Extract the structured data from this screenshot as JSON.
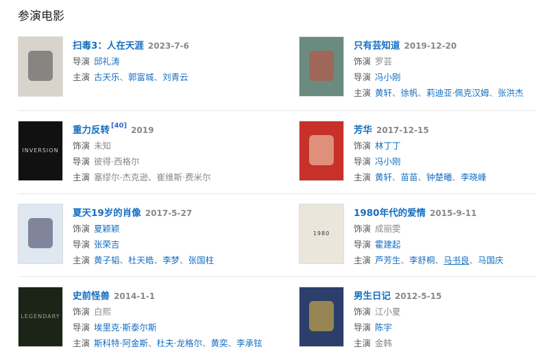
{
  "section_title": "参演电影",
  "labels": {
    "role": "饰演",
    "director": "导演",
    "cast": "主演"
  },
  "films": [
    {
      "title": "扫毒3：人在天涯",
      "ref": "",
      "date": "2023-7-6",
      "poster_bg": "#d8d4cc",
      "poster_fg": "#444",
      "role": null,
      "director": [
        {
          "n": "邱礼涛",
          "l": true
        }
      ],
      "cast": [
        {
          "n": "古天乐",
          "l": true
        },
        {
          "n": "郭富城",
          "l": true
        },
        {
          "n": "刘青云",
          "l": true
        }
      ]
    },
    {
      "title": "只有芸知道",
      "ref": "",
      "date": "2019-12-20",
      "poster_bg": "#6b8a80",
      "poster_fg": "#c94a3a",
      "role": [
        {
          "n": "罗芸",
          "l": false
        }
      ],
      "director": [
        {
          "n": "冯小刚",
          "l": true
        }
      ],
      "cast": [
        {
          "n": "黄轩",
          "l": true
        },
        {
          "n": "徐帆",
          "l": true
        },
        {
          "n": "莉迪亚·佩克汉姆",
          "l": true
        },
        {
          "n": "张洪杰",
          "l": true
        }
      ]
    },
    {
      "title": "重力反转",
      "ref": "[40]",
      "date": "2019",
      "poster_bg": "#111",
      "poster_fg": "#ccc",
      "poster_text": "INVERSION",
      "role": [
        {
          "n": "未知",
          "l": false
        }
      ],
      "director": [
        {
          "n": "彼得·西格尔",
          "l": false
        }
      ],
      "cast": [
        {
          "n": "塞缪尔·杰克逊",
          "l": false
        },
        {
          "n": "崔维斯·费米尔",
          "l": false
        }
      ]
    },
    {
      "title": "芳华",
      "ref": "",
      "date": "2017-12-15",
      "poster_bg": "#c8302a",
      "poster_fg": "#f3e0c0",
      "role": [
        {
          "n": "林丁丁",
          "l": true
        }
      ],
      "director": [
        {
          "n": "冯小刚",
          "l": true
        }
      ],
      "cast": [
        {
          "n": "黄轩",
          "l": true
        },
        {
          "n": "苗苗",
          "l": true
        },
        {
          "n": "钟楚曦",
          "l": true
        },
        {
          "n": "李晓峰",
          "l": true
        }
      ]
    },
    {
      "title": "夏天19岁的肖像",
      "ref": "",
      "date": "2017-5-27",
      "poster_bg": "#dfe8f0",
      "poster_fg": "#335",
      "role": [
        {
          "n": "夏颖颖",
          "l": true
        }
      ],
      "director": [
        {
          "n": "张荣吉",
          "l": true
        }
      ],
      "cast": [
        {
          "n": "黄子韬",
          "l": true
        },
        {
          "n": "杜天皓",
          "l": true
        },
        {
          "n": "李梦",
          "l": true
        },
        {
          "n": "张国柱",
          "l": true
        }
      ]
    },
    {
      "title": "1980年代的爱情",
      "ref": "",
      "date": "2015-9-11",
      "poster_bg": "#ebe6dc",
      "poster_fg": "#333",
      "poster_text": "1980",
      "role": [
        {
          "n": "成丽雯",
          "l": false
        }
      ],
      "director": [
        {
          "n": "霍建起",
          "l": true
        }
      ],
      "cast": [
        {
          "n": "芦芳生",
          "l": true
        },
        {
          "n": "李舒桐",
          "l": true
        },
        {
          "n": "马书良",
          "l": true,
          "hover": true
        },
        {
          "n": "马国庆",
          "l": true
        }
      ]
    },
    {
      "title": "史前怪兽",
      "ref": "",
      "date": "2014-1-1",
      "poster_bg": "#1c2418",
      "poster_fg": "#9a8",
      "poster_text": "LEGENDARY",
      "role": [
        {
          "n": "白熙",
          "l": false
        }
      ],
      "director": [
        {
          "n": "埃里克·斯泰尔斯",
          "l": true
        }
      ],
      "cast": [
        {
          "n": "斯科特·阿金斯",
          "l": true
        },
        {
          "n": "杜夫·龙格尔",
          "l": true
        },
        {
          "n": "黄奕",
          "l": true
        },
        {
          "n": "李承铉",
          "l": true
        }
      ]
    },
    {
      "title": "男生日记",
      "ref": "",
      "date": "2012-5-15",
      "poster_bg": "#2c3f6a",
      "poster_fg": "#f0c040",
      "role": [
        {
          "n": "江小夏",
          "l": false
        }
      ],
      "director": [
        {
          "n": "陈宇",
          "l": true
        }
      ],
      "cast": [
        {
          "n": "金韩",
          "l": false
        }
      ]
    }
  ]
}
